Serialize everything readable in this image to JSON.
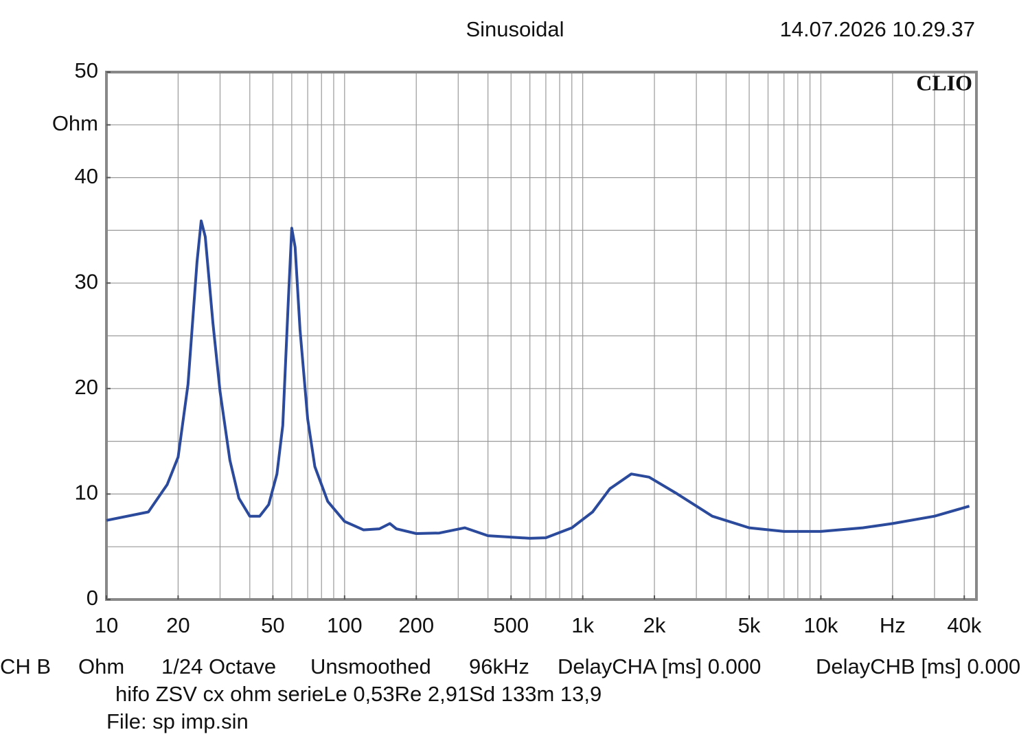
{
  "chart_data": {
    "type": "line",
    "title": "Sinusoidal",
    "timestamp": "14.07.2026 10.29.37",
    "logo": "CLIO",
    "x_scale": "log",
    "grid": true,
    "color": "#2b4a9b",
    "xlim": [
      10,
      45000
    ],
    "ylim": [
      0,
      50
    ],
    "xticks": [
      10,
      20,
      50,
      100,
      200,
      500,
      {
        "value": 1000,
        "label": "1k"
      },
      {
        "value": 2000,
        "label": "2k"
      },
      {
        "value": 5000,
        "label": "5k"
      },
      {
        "value": 10000,
        "label": "10k"
      },
      {
        "value": 20000,
        "label": "Hz"
      },
      {
        "value": 40000,
        "label": "40k"
      }
    ],
    "yticks": [
      0,
      10,
      20,
      30,
      40,
      {
        "value": 45,
        "label": "Ohm"
      },
      50
    ],
    "xgrid": [
      10,
      20,
      30,
      40,
      50,
      60,
      70,
      80,
      90,
      100,
      200,
      300,
      400,
      500,
      600,
      700,
      800,
      900,
      1000,
      2000,
      3000,
      4000,
      5000,
      6000,
      7000,
      8000,
      9000,
      10000,
      20000,
      30000,
      40000
    ],
    "ygrid": [
      0,
      5,
      10,
      15,
      20,
      25,
      30,
      35,
      40,
      45,
      50
    ],
    "x": [
      10,
      15,
      18,
      20,
      22,
      24,
      25,
      26,
      28,
      30,
      33,
      36,
      40,
      44,
      48,
      52,
      55,
      58,
      60,
      62,
      65,
      70,
      75,
      85,
      100,
      120,
      140,
      155,
      165,
      200,
      250,
      320,
      400,
      600,
      700,
      900,
      1100,
      1300,
      1600,
      1900,
      2500,
      3500,
      5000,
      7000,
      10000,
      15000,
      20000,
      30000,
      42000
    ],
    "values": [
      7.5,
      8.3,
      10.9,
      13.5,
      20.4,
      32,
      35.9,
      34.4,
      26.2,
      19.7,
      13.2,
      9.6,
      7.9,
      7.9,
      9.0,
      11.9,
      16.5,
      28.2,
      35.2,
      33.4,
      25.6,
      17.1,
      12.6,
      9.3,
      7.4,
      6.6,
      6.7,
      7.2,
      6.7,
      6.25,
      6.3,
      6.8,
      6.05,
      5.8,
      5.85,
      6.8,
      8.3,
      10.5,
      11.9,
      11.6,
      10.0,
      7.9,
      6.8,
      6.45,
      6.45,
      6.8,
      7.2,
      7.9,
      8.85
    ],
    "footer": {
      "settings": [
        "CH B",
        "Ohm",
        "1/24 Octave",
        "Unsmoothed",
        "96kHz",
        "DelayCHA [ms] 0.000",
        "DelayCHB [ms] 0.000"
      ],
      "description": "hifo ZSV cx ohm serieLe 0,53Re 2,91Sd 133m 13,9",
      "file": "File: sp imp.sin"
    }
  }
}
